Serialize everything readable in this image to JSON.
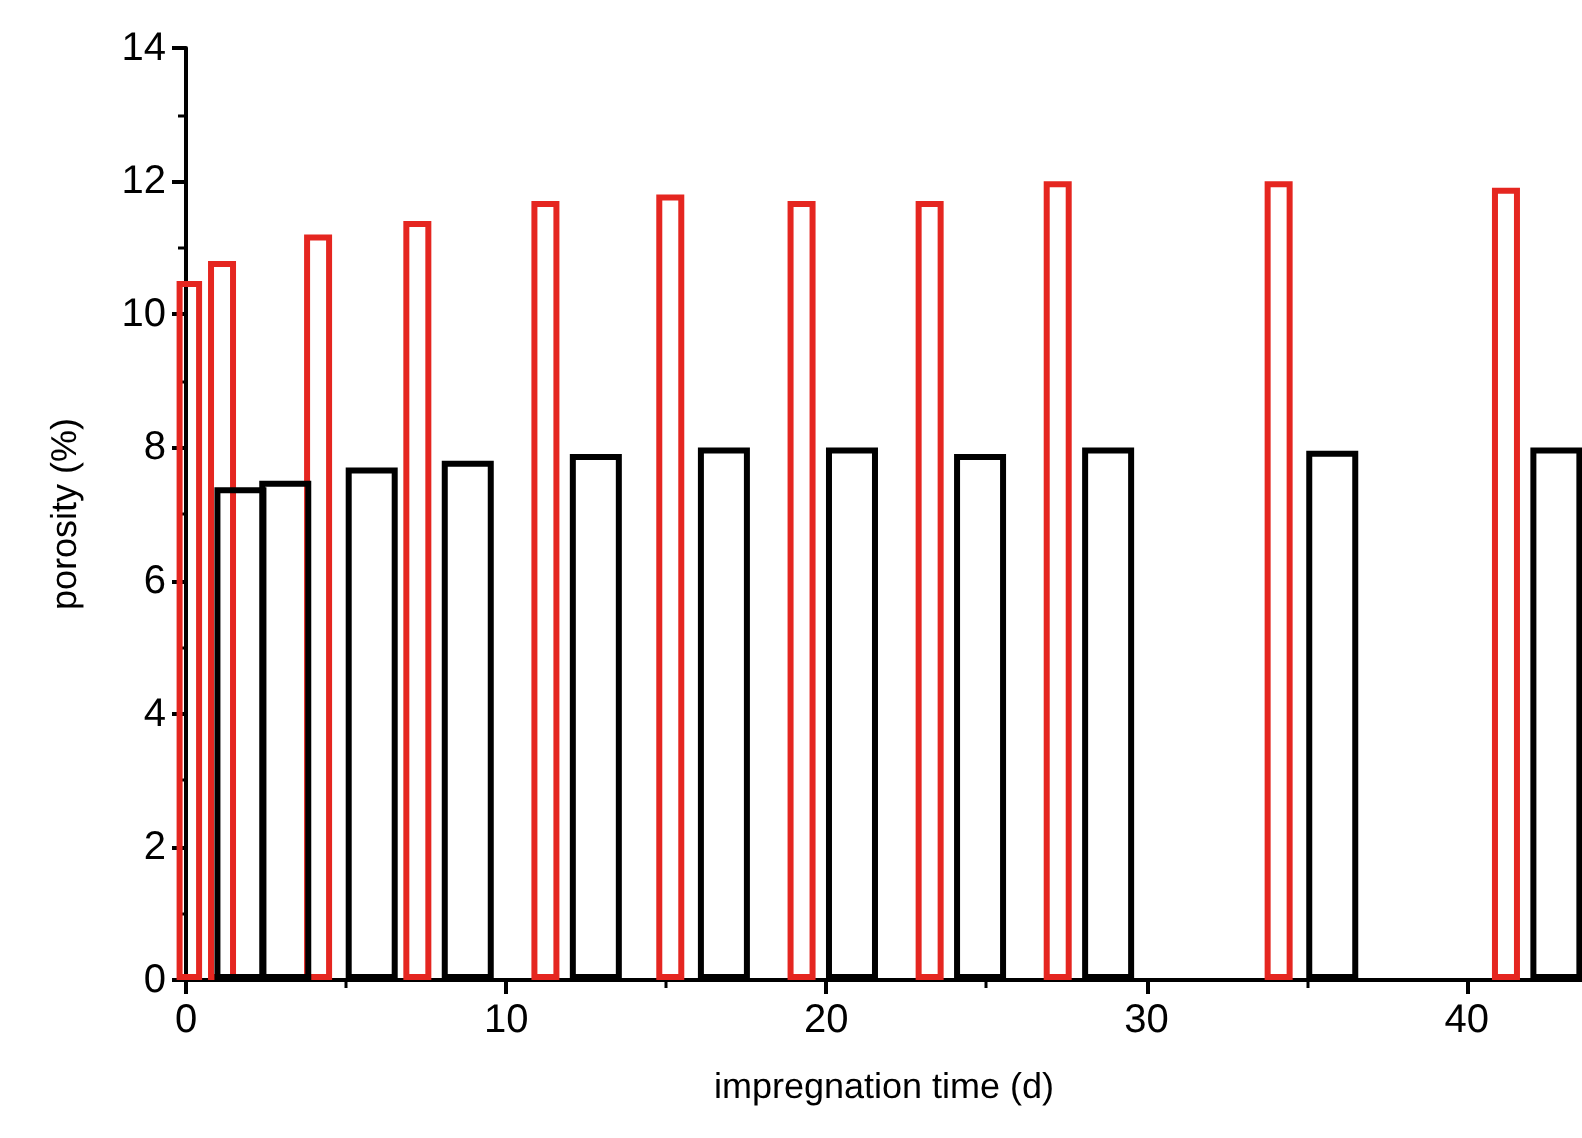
{
  "chart_data": {
    "type": "bar",
    "xlabel": "impregnation time (d)",
    "ylabel": "porosity (%)",
    "xlim": [
      0,
      43.6
    ],
    "xticks": [
      0,
      10,
      20,
      30,
      40
    ],
    "ylim": [
      0,
      14
    ],
    "yticks": [
      0,
      2,
      4,
      6,
      8,
      10,
      12,
      14
    ],
    "series": [
      {
        "color": "#e52620",
        "x": [
          0.44,
          1.5,
          4.5,
          7.6,
          11.6,
          15.5,
          19.6,
          23.6,
          27.6,
          34.5,
          41.6
        ],
        "values": [
          10.5,
          10.8,
          11.2,
          11.4,
          11.7,
          11.8,
          11.7,
          11.7,
          12.0,
          12.0,
          11.9
        ]
      },
      {
        "color": "#000000",
        "x": [
          1.7,
          3.1,
          5.8,
          8.8,
          12.8,
          16.8,
          20.8,
          24.8,
          28.8,
          35.8,
          42.8
        ],
        "values": [
          7.4,
          7.5,
          7.7,
          7.8,
          7.9,
          8.0,
          8.0,
          7.9,
          8.0,
          7.95,
          8.0
        ]
      }
    ]
  }
}
